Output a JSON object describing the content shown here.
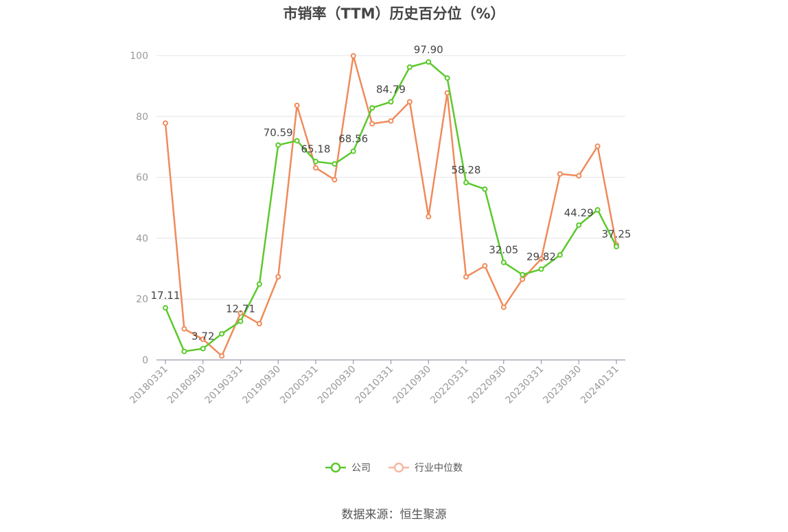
{
  "chart_data": {
    "type": "line",
    "title": "市销率（TTM）历史百分位（%）",
    "x": [
      "20180331",
      "20180630",
      "20180930",
      "20181231",
      "20190331",
      "20190630",
      "20190930",
      "20191231",
      "20200331",
      "20200630",
      "20200930",
      "20201231",
      "20210331",
      "20210630",
      "20210930",
      "20211231",
      "20220331",
      "20220630",
      "20220930",
      "20221231",
      "20230331",
      "20230630",
      "20230930",
      "20231231",
      "20240131"
    ],
    "x_tick_labels": [
      "20180331",
      "20180930",
      "20190331",
      "20190930",
      "20200331",
      "20200930",
      "20210331",
      "20210930",
      "20220331",
      "20220930",
      "20230331",
      "20230930",
      "20240131"
    ],
    "y_ticks": [
      "0",
      "20",
      "40",
      "60",
      "80",
      "100"
    ],
    "ylim": [
      0,
      100
    ],
    "grid": true,
    "legend_position": "bottom",
    "series": [
      {
        "name": "公司",
        "color": "#5ac92b",
        "values": [
          17.11,
          2.8,
          3.72,
          8.6,
          12.71,
          24.9,
          70.59,
          72.0,
          65.18,
          64.4,
          68.56,
          82.8,
          84.79,
          96.2,
          97.9,
          92.6,
          58.28,
          56.1,
          32.05,
          28.0,
          29.82,
          34.5,
          44.29,
          49.3,
          37.25
        ],
        "labels": {
          "0": "17.11",
          "2": "3.72",
          "4": "12.71",
          "6": "70.59",
          "8": "65.18",
          "10": "68.56",
          "12": "84.79",
          "14": "97.90",
          "16": "58.28",
          "18": "32.05",
          "20": "29.82",
          "22": "44.29",
          "24": "37.25"
        }
      },
      {
        "name": "行业中位数",
        "color": "#f08a5a",
        "values": [
          77.8,
          10.2,
          6.8,
          1.3,
          15.4,
          11.9,
          27.3,
          83.6,
          63.1,
          59.2,
          99.9,
          77.6,
          78.5,
          84.8,
          47.1,
          87.7,
          27.3,
          30.9,
          17.3,
          26.5,
          33.2,
          61.1,
          60.5,
          70.2,
          37.8
        ]
      }
    ]
  },
  "legend": {
    "company": "公司",
    "industry": "行业中位数"
  },
  "source": "数据来源：恒生聚源"
}
